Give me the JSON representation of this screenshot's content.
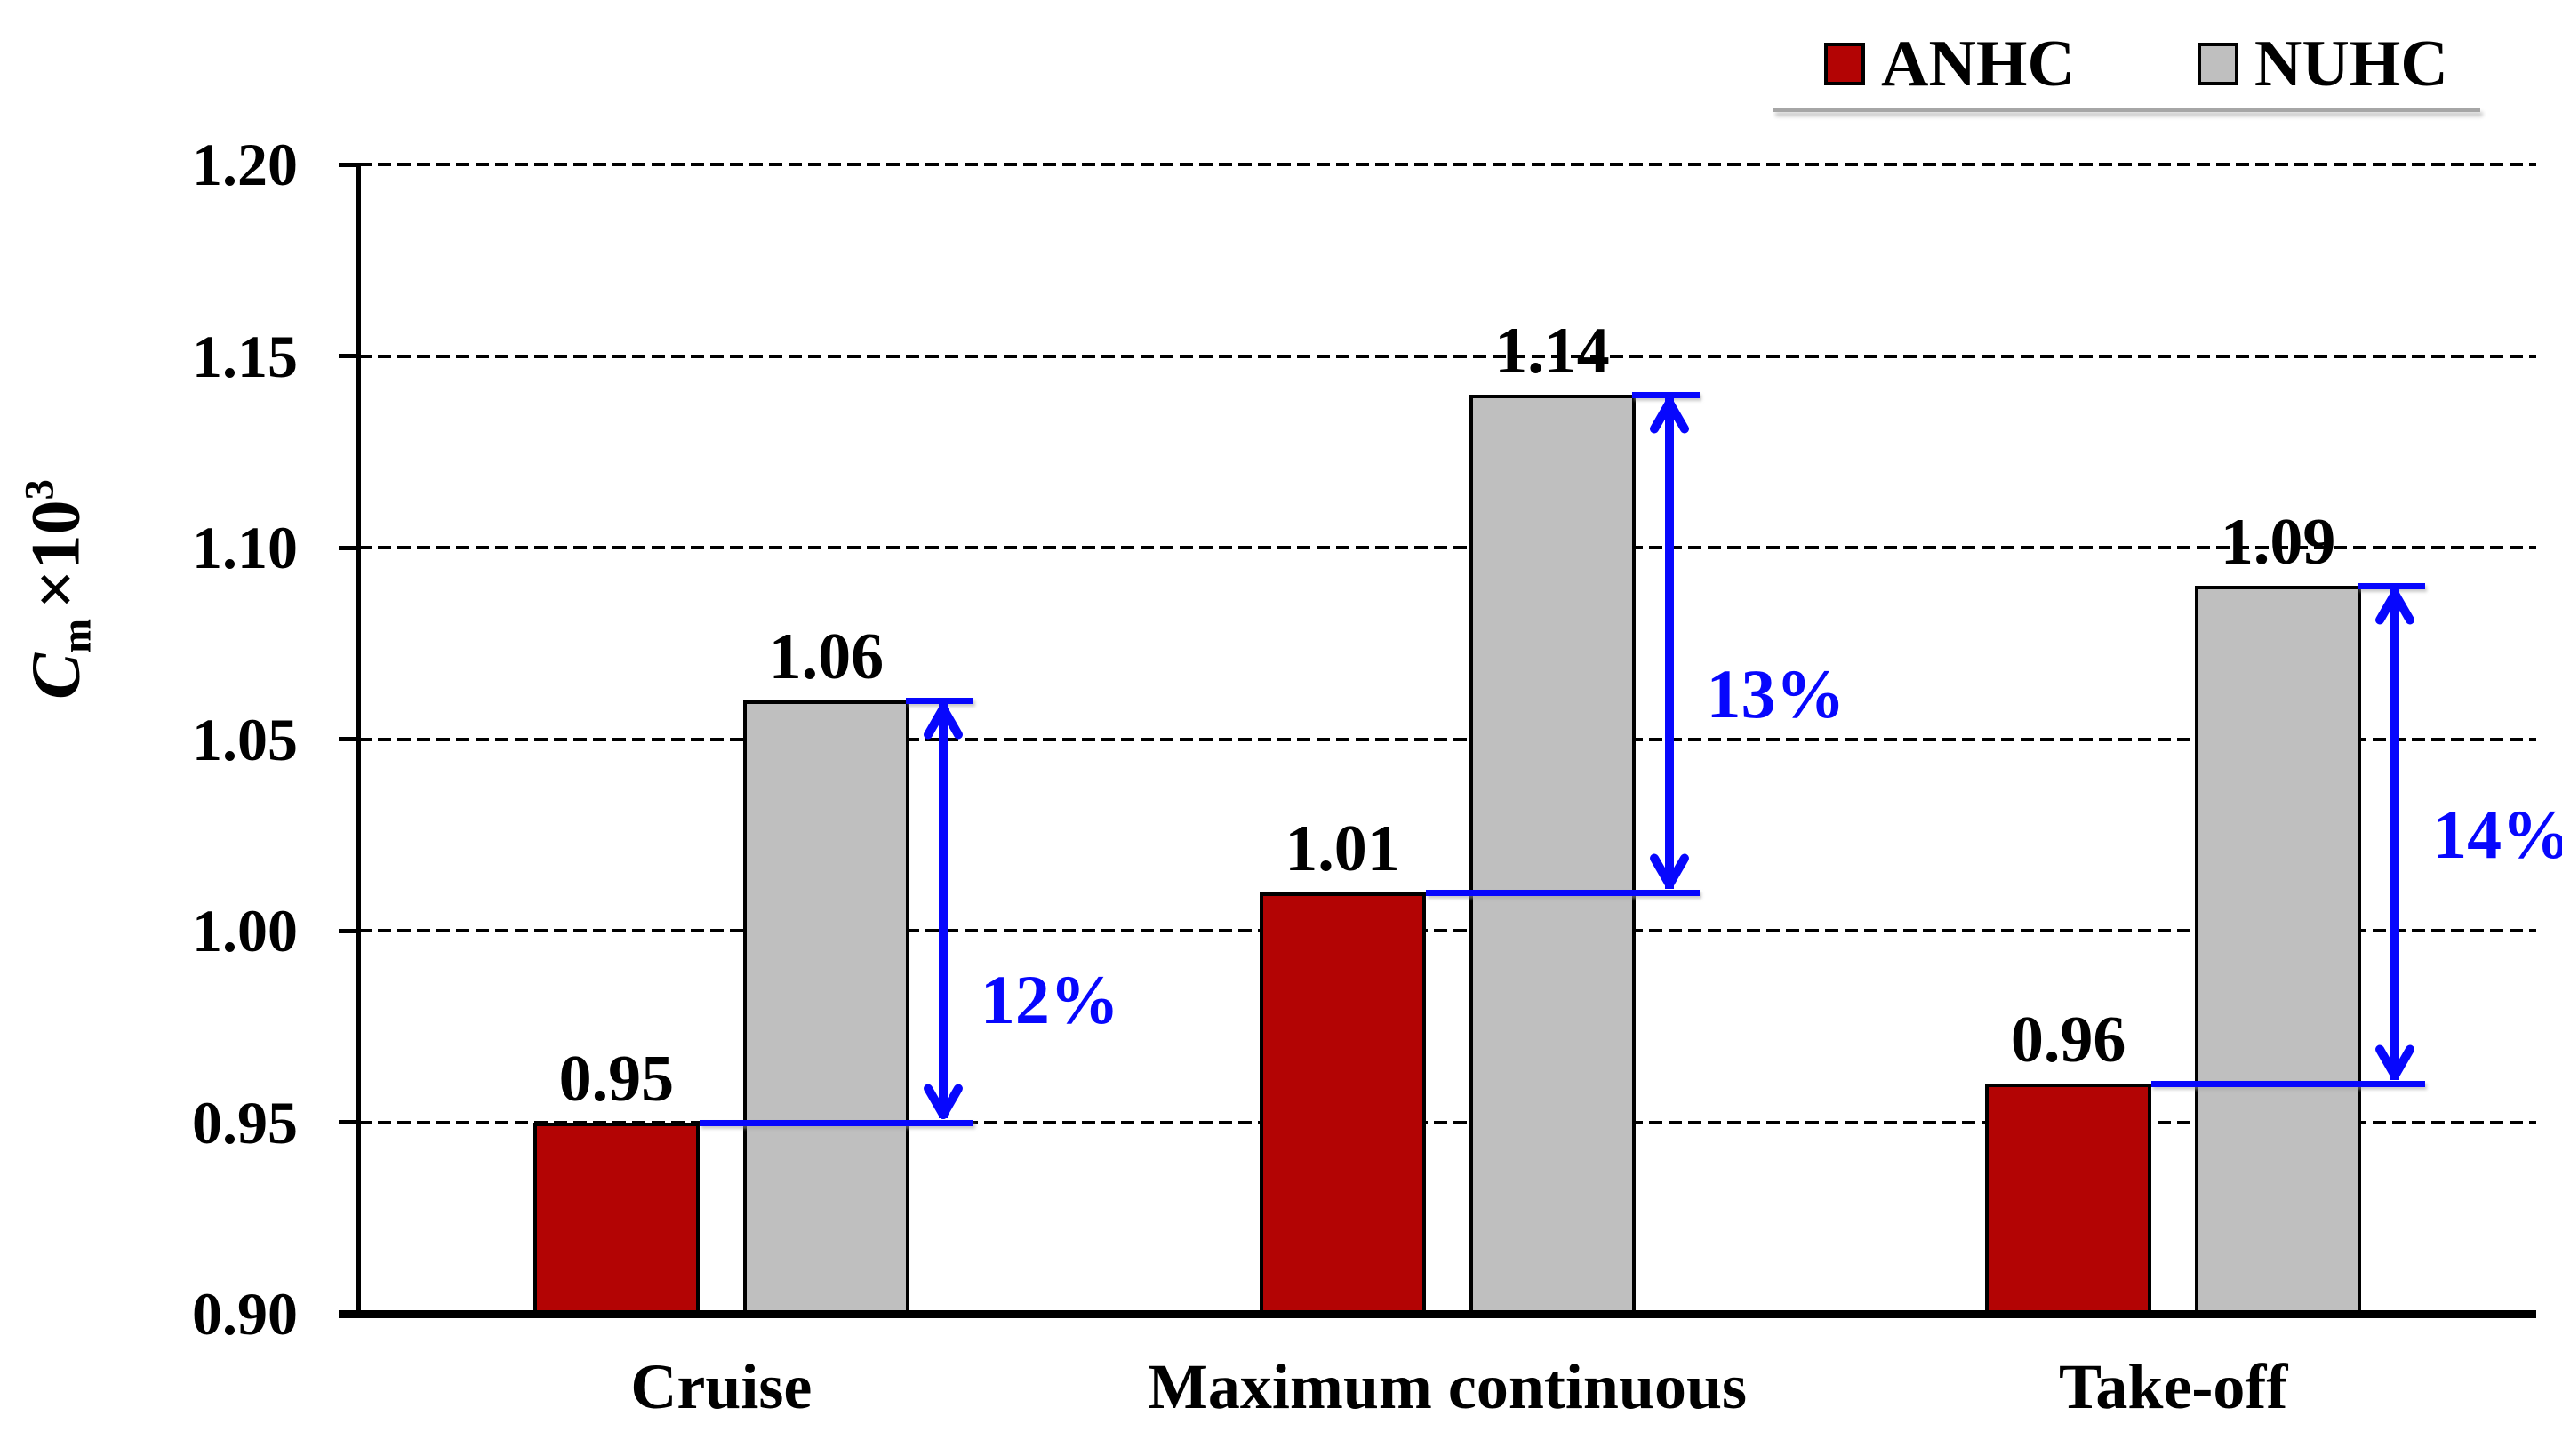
{
  "colors": {
    "anhc": "#b30404",
    "nuhc": "#bfbfbf",
    "bar_border": "#000000",
    "annotation_blue": "#0707fd",
    "axis": "#000000",
    "legend_rule": "#a6a6a6"
  },
  "legend": {
    "items": [
      {
        "label": "ANHC",
        "color": "#b30404"
      },
      {
        "label": "NUHC",
        "color": "#bfbfbf"
      }
    ]
  },
  "y_axis": {
    "title_c": "C",
    "title_sub": "m",
    "title_times": "×10",
    "title_exp": "3",
    "tick_labels": [
      "0.90",
      "0.95",
      "1.00",
      "1.05",
      "1.10",
      "1.15",
      "1.20"
    ]
  },
  "chart_data": {
    "type": "bar",
    "title": "",
    "xlabel": "",
    "ylabel": "Cm ×10^3",
    "ylim": [
      0.9,
      1.2
    ],
    "ytick_step": 0.05,
    "grid": "horizontal-dashed",
    "legend_position": "top-right",
    "categories": [
      "Cruise",
      "Maximum continuous",
      "Take-off"
    ],
    "series": [
      {
        "name": "ANHC",
        "color": "#b30404",
        "values": [
          0.95,
          1.01,
          0.96
        ],
        "labels": [
          "0.95",
          "1.01",
          "0.96"
        ]
      },
      {
        "name": "NUHC",
        "color": "#bfbfbf",
        "values": [
          1.06,
          1.14,
          1.09
        ],
        "labels": [
          "1.06",
          "1.14",
          "1.09"
        ]
      }
    ],
    "annotations": [
      {
        "label": "12%",
        "from_value": 0.95,
        "to_value": 1.06,
        "category": "Cruise"
      },
      {
        "label": "13%",
        "from_value": 1.01,
        "to_value": 1.14,
        "category": "Maximum continuous"
      },
      {
        "label": "14%",
        "from_value": 0.96,
        "to_value": 1.09,
        "category": "Take-off"
      }
    ]
  }
}
